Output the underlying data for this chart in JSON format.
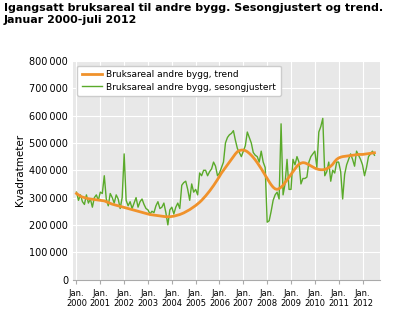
{
  "title_line1": "Igangsatt bruksareal til andre bygg. Sesongjustert og trend.",
  "title_line2": "Januar 2000-juli 2012",
  "ylabel": "Kvadratmeter",
  "ylim": [
    0,
    800000
  ],
  "yticks": [
    0,
    100000,
    200000,
    300000,
    400000,
    500000,
    600000,
    700000,
    800000
  ],
  "background_color": "#ffffff",
  "plot_bg_color": "#e8e8e8",
  "grid_color": "#ffffff",
  "trend_color": "#f0922b",
  "seasonal_color": "#5aaa2a",
  "trend_label": "Bruksareal andre bygg, trend",
  "seasonal_label": "Bruksareal andre bygg, sesongjustert",
  "trend_lw": 2.0,
  "seasonal_lw": 1.0,
  "start_year": 2000,
  "start_month": 1,
  "trend_values": [
    315000,
    310000,
    305000,
    302000,
    300000,
    298000,
    296000,
    295000,
    294000,
    293000,
    292000,
    291000,
    290000,
    289000,
    288000,
    285000,
    282000,
    279000,
    276000,
    274000,
    272000,
    270000,
    268000,
    266000,
    264000,
    262000,
    260000,
    258000,
    256000,
    254000,
    252000,
    250000,
    248000,
    246000,
    244000,
    242000,
    240000,
    238000,
    237000,
    236000,
    235000,
    234000,
    233000,
    232000,
    231000,
    230000,
    230000,
    230000,
    231000,
    232000,
    234000,
    236000,
    238000,
    241000,
    244000,
    248000,
    252000,
    256000,
    261000,
    266000,
    271000,
    277000,
    283000,
    290000,
    298000,
    306000,
    315000,
    324000,
    334000,
    344000,
    355000,
    366000,
    378000,
    390000,
    400000,
    410000,
    420000,
    430000,
    440000,
    450000,
    460000,
    468000,
    472000,
    474000,
    474000,
    472000,
    468000,
    462000,
    455000,
    447000,
    438000,
    428000,
    417000,
    406000,
    394000,
    382000,
    370000,
    358000,
    347000,
    338000,
    332000,
    330000,
    333000,
    338000,
    345000,
    355000,
    365000,
    375000,
    385000,
    395000,
    405000,
    415000,
    422000,
    426000,
    428000,
    427000,
    424000,
    420000,
    416000,
    412000,
    408000,
    405000,
    403000,
    402000,
    402000,
    403000,
    406000,
    410000,
    415000,
    422000,
    432000,
    440000,
    445000,
    448000,
    450000,
    451000,
    452000,
    453000,
    454000,
    455000,
    456000,
    457000,
    458000,
    458000,
    458000,
    459000,
    460000,
    461000,
    462000,
    463000,
    464000
  ],
  "seasonal_values": [
    320000,
    290000,
    310000,
    285000,
    275000,
    310000,
    280000,
    295000,
    265000,
    300000,
    310000,
    290000,
    320000,
    315000,
    380000,
    295000,
    270000,
    315000,
    300000,
    280000,
    310000,
    295000,
    260000,
    300000,
    460000,
    290000,
    270000,
    285000,
    260000,
    280000,
    300000,
    265000,
    285000,
    295000,
    275000,
    260000,
    255000,
    240000,
    250000,
    245000,
    270000,
    285000,
    260000,
    265000,
    280000,
    245000,
    200000,
    255000,
    265000,
    240000,
    265000,
    280000,
    260000,
    345000,
    355000,
    360000,
    330000,
    290000,
    350000,
    320000,
    330000,
    310000,
    390000,
    380000,
    400000,
    400000,
    380000,
    395000,
    405000,
    430000,
    415000,
    380000,
    390000,
    410000,
    430000,
    500000,
    520000,
    530000,
    535000,
    545000,
    510000,
    480000,
    465000,
    450000,
    470000,
    490000,
    540000,
    520000,
    500000,
    465000,
    455000,
    450000,
    430000,
    470000,
    430000,
    410000,
    210000,
    215000,
    250000,
    290000,
    310000,
    320000,
    295000,
    570000,
    310000,
    350000,
    440000,
    330000,
    330000,
    440000,
    420000,
    450000,
    430000,
    350000,
    370000,
    370000,
    375000,
    430000,
    450000,
    460000,
    470000,
    410000,
    540000,
    560000,
    590000,
    380000,
    395000,
    430000,
    360000,
    400000,
    390000,
    430000,
    430000,
    395000,
    295000,
    385000,
    420000,
    440000,
    460000,
    440000,
    415000,
    470000,
    455000,
    440000,
    420000,
    380000,
    410000,
    450000,
    460000,
    470000,
    455000
  ]
}
